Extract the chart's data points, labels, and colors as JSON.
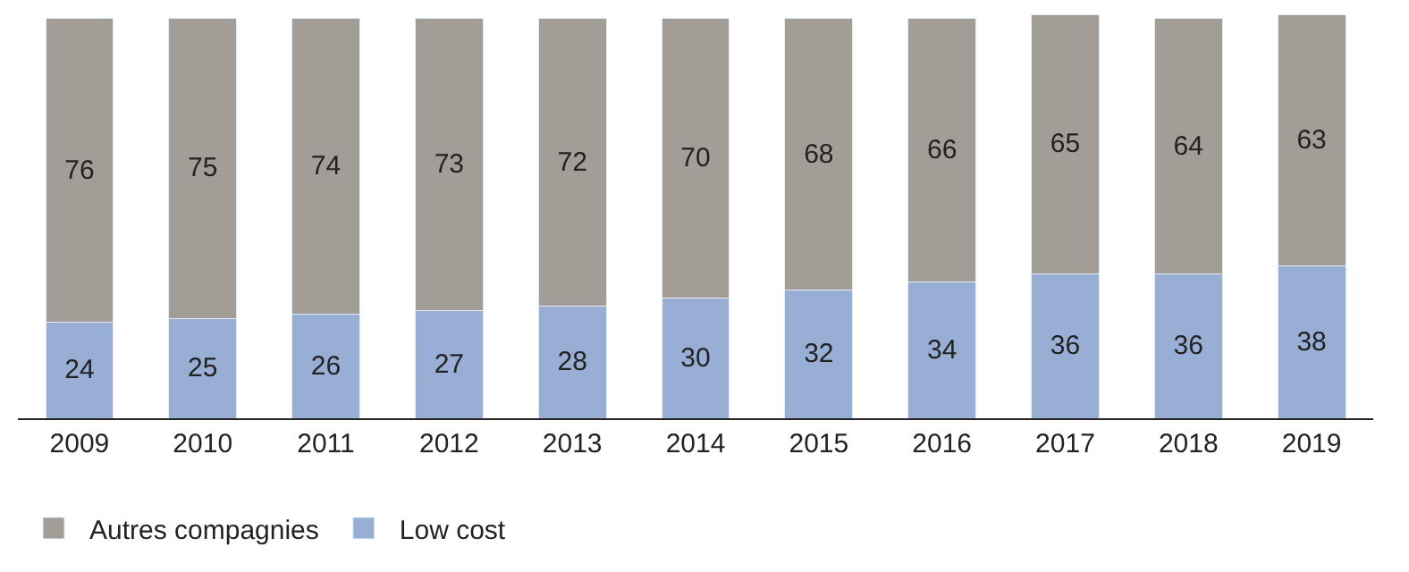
{
  "chart_data": {
    "type": "bar",
    "stacked": true,
    "data_labels": true,
    "legend": "bottom left",
    "tick_labels": "x",
    "ylim": [
      0,
      101
    ],
    "categories": [
      "2009",
      "2010",
      "2011",
      "2012",
      "2013",
      "2014",
      "2015",
      "2016",
      "2017",
      "2018",
      "2019"
    ],
    "series": [
      {
        "name": "Low cost",
        "color": "#98aed5",
        "values": [
          24,
          25,
          26,
          27,
          28,
          30,
          32,
          34,
          36,
          36,
          38
        ]
      },
      {
        "name": "Autres compagnies",
        "color": "#a39d97",
        "values": [
          76,
          75,
          74,
          73,
          72,
          70,
          68,
          66,
          65,
          64,
          63
        ]
      }
    ]
  }
}
